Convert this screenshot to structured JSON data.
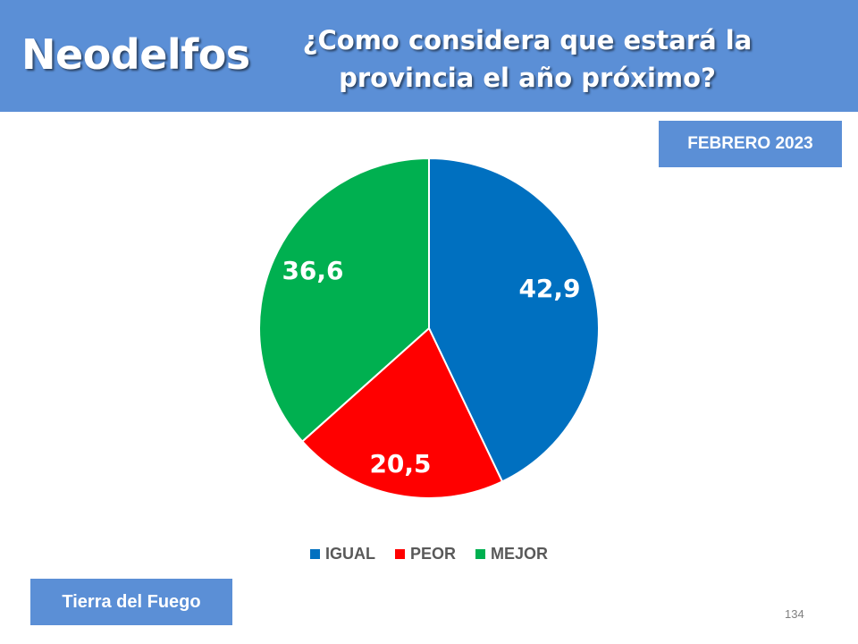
{
  "header": {
    "brand": "Neodelfos",
    "question_line1": "¿Como considera que estará la",
    "question_line2": "provincia el año próximo?"
  },
  "date_badge": "FEBRERO 2023",
  "region_badge": "Tierra del Fuego",
  "page_number": "134",
  "colors": {
    "header_bg": "#5b8fd6",
    "igual": "#0070c0",
    "peor": "#ff0000",
    "mejor": "#00b050"
  },
  "chart_data": {
    "type": "pie",
    "title": "¿Como considera que estará la provincia el año próximo?",
    "legend_position": "bottom",
    "slices": [
      {
        "label": "IGUAL",
        "value": 42.9,
        "display": "42,9",
        "color": "#0070c0"
      },
      {
        "label": "PEOR",
        "value": 20.5,
        "display": "20,5",
        "color": "#ff0000"
      },
      {
        "label": "MEJOR",
        "value": 36.6,
        "display": "36,6",
        "color": "#00b050"
      }
    ]
  }
}
